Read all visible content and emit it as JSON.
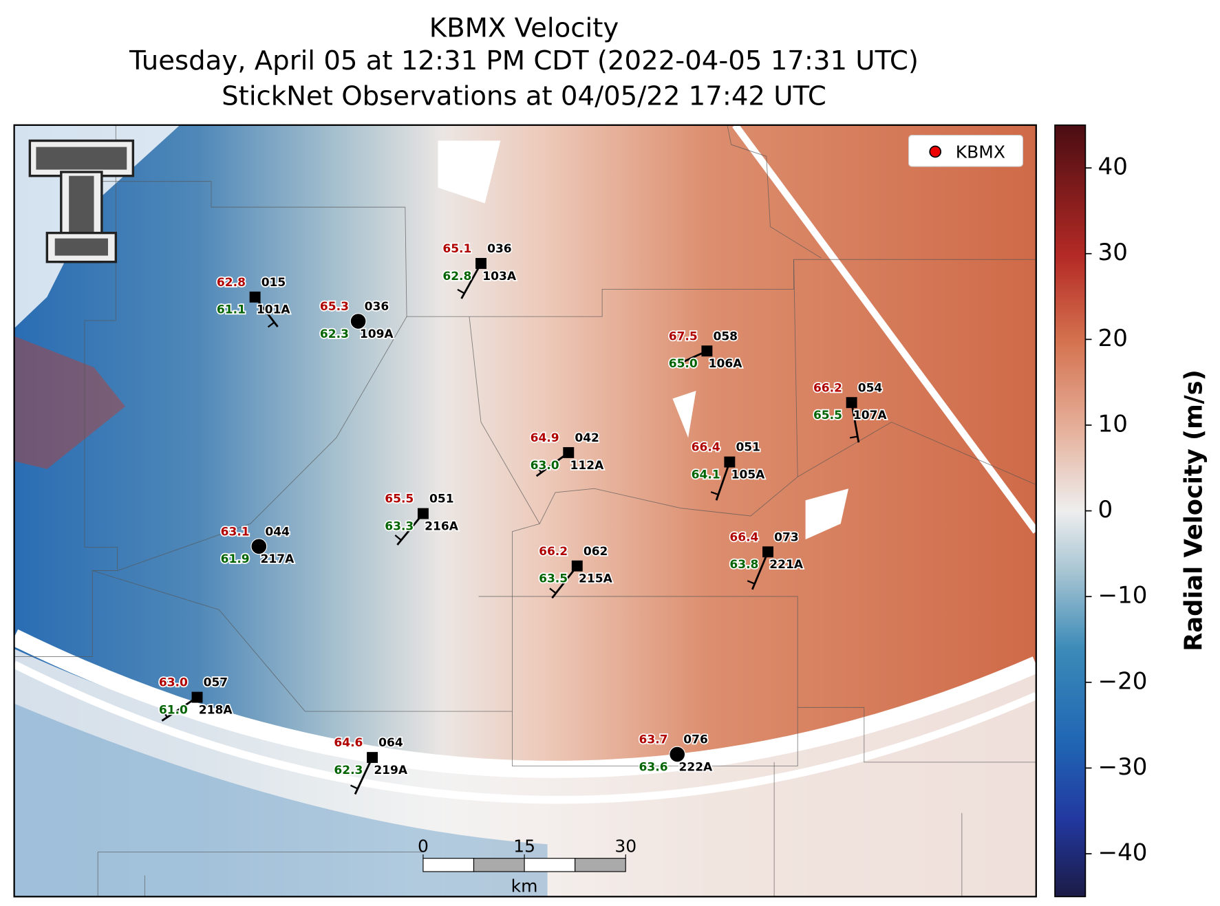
{
  "header": {
    "title": [
      "KBMX Velocity",
      "Tuesday, April 05 at 12:31 PM CDT (2022-04-05 17:31 UTC)",
      "StickNet Observations at 04/05/22 17:42 UTC"
    ]
  },
  "legend": {
    "label": "KBMX"
  },
  "colorbar": {
    "label": "Radial Velocity (m/s)",
    "lim": [
      -45,
      45
    ],
    "ticks": [
      {
        "value": -40,
        "label": "−40"
      },
      {
        "value": -30,
        "label": "−30"
      },
      {
        "value": -20,
        "label": "−20"
      },
      {
        "value": -10,
        "label": "−10"
      },
      0,
      10,
      20,
      30,
      40
    ]
  },
  "scale_bar": {
    "ticks": [
      0,
      15,
      30
    ],
    "unit": "km"
  },
  "stations": [
    {
      "id": "101A",
      "temperature": "62.8",
      "dewpoint": "61.1",
      "code": "015"
    },
    {
      "id": "109A",
      "temperature": "65.3",
      "dewpoint": "62.3",
      "code": "036"
    },
    {
      "id": "103A",
      "temperature": "65.1",
      "dewpoint": "62.8",
      "code": "036"
    },
    {
      "id": "106A",
      "temperature": "67.5",
      "dewpoint": "65.0",
      "code": "058"
    },
    {
      "id": "107A",
      "temperature": "66.2",
      "dewpoint": "65.5",
      "code": "054"
    },
    {
      "id": "112A",
      "temperature": "64.9",
      "dewpoint": "63.0",
      "code": "042"
    },
    {
      "id": "105A",
      "temperature": "66.4",
      "dewpoint": "64.1",
      "code": "051"
    },
    {
      "id": "216A",
      "temperature": "65.5",
      "dewpoint": "63.3",
      "code": "051"
    },
    {
      "id": "217A",
      "temperature": "63.1",
      "dewpoint": "61.9",
      "code": "044"
    },
    {
      "id": "215A",
      "temperature": "66.2",
      "dewpoint": "63.5",
      "code": "062"
    },
    {
      "id": "221A",
      "temperature": "66.4",
      "dewpoint": "63.8",
      "code": "073"
    },
    {
      "id": "218A",
      "temperature": "63.0",
      "dewpoint": "61.0",
      "code": "057"
    },
    {
      "id": "219A",
      "temperature": "64.6",
      "dewpoint": "62.3",
      "code": "064"
    },
    {
      "id": "222A",
      "temperature": "63.7",
      "dewpoint": "63.6",
      "code": "076"
    }
  ]
}
